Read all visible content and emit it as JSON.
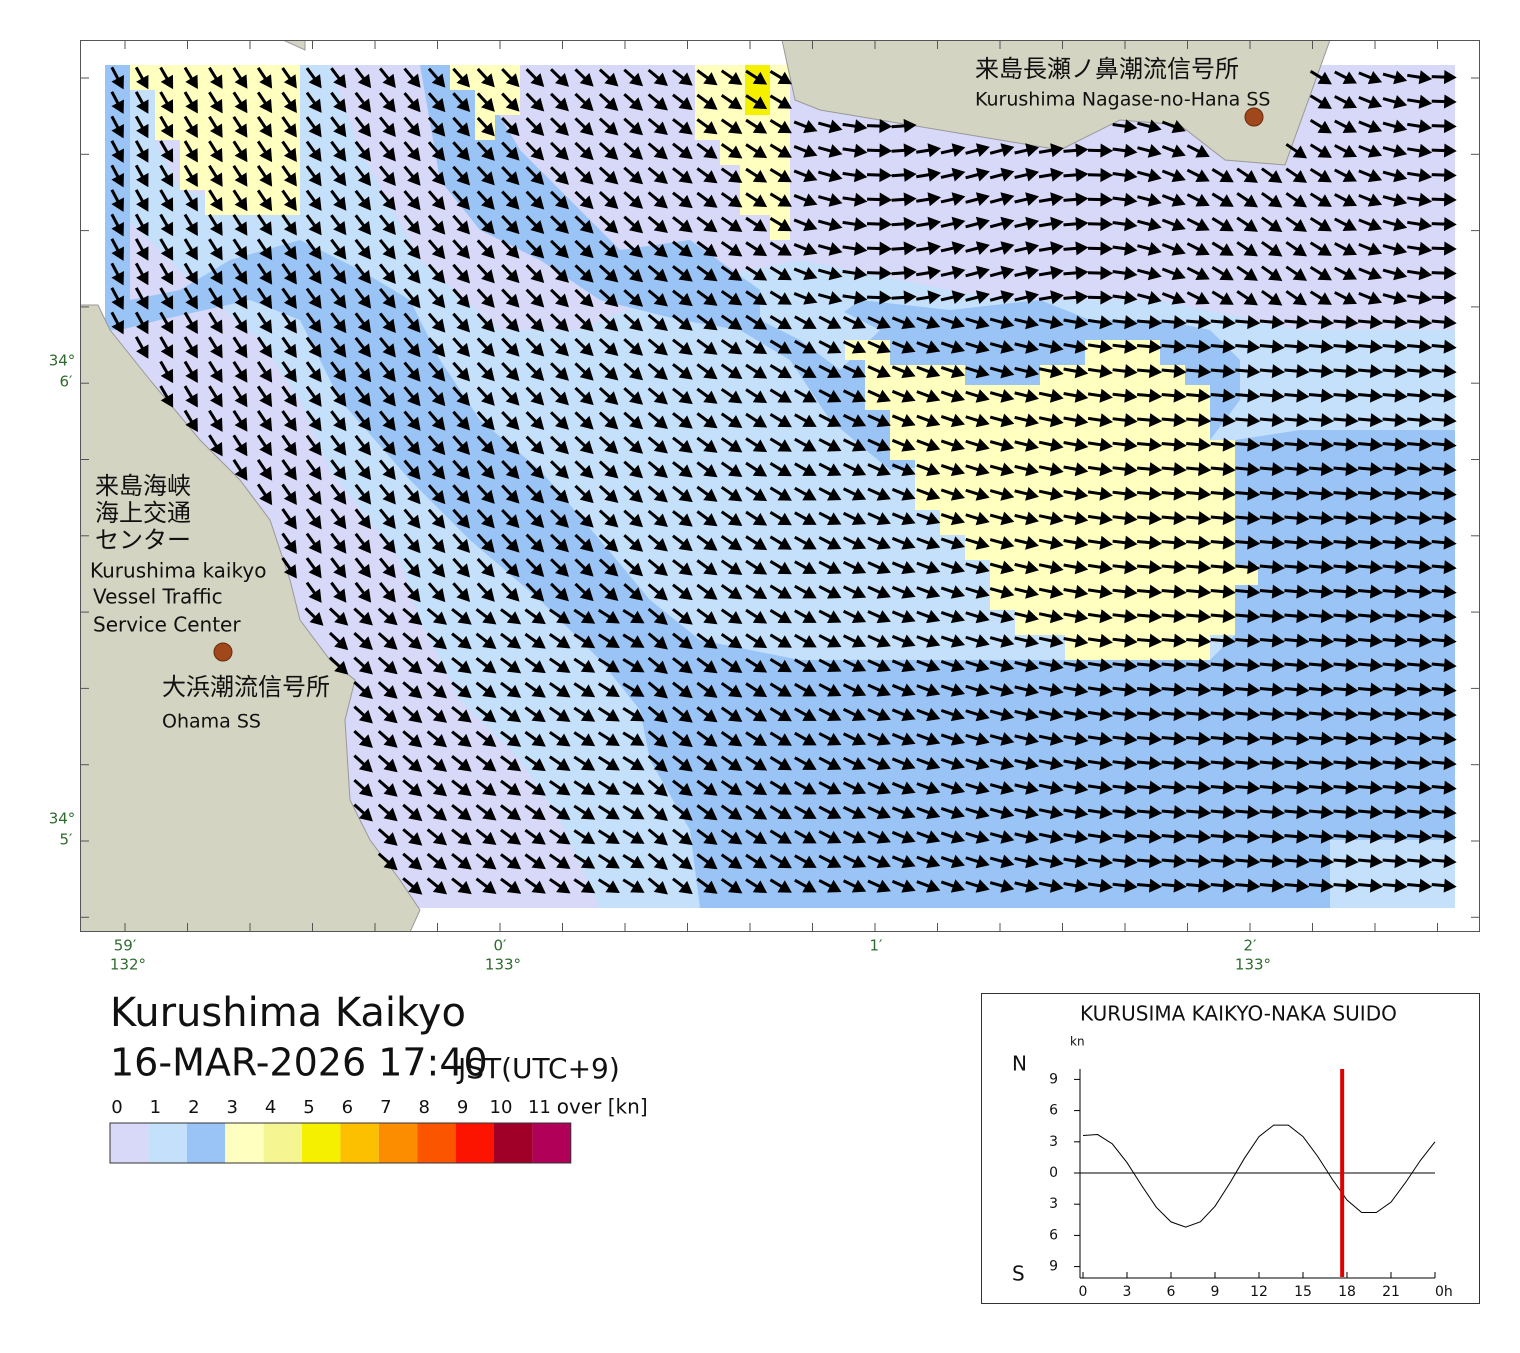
{
  "header": {
    "title": "Kurushima Kaikyo",
    "datetime": "16-MAR-2026 17:40",
    "timezone": "JST(UTC+9)"
  },
  "map": {
    "stations": [
      {
        "name_ja": "来島長瀬ノ鼻潮流信号所",
        "name_en": "Kurushima Nagase-no-Hana SS"
      },
      {
        "name_ja": "大浜潮流信号所",
        "name_en": "Ohama SS"
      }
    ],
    "vts": {
      "name_ja": [
        "来島海峡",
        "海上交通",
        "センター"
      ],
      "name_en": [
        "Kurushima kaikyo",
        "Vessel Traffic",
        "Service Center"
      ]
    },
    "lat_labels": [
      [
        "34°",
        "6′"
      ],
      [
        "34°",
        "5′"
      ]
    ],
    "lon_labels": [
      [
        "59′",
        "132°"
      ],
      [
        "0′",
        "133°"
      ],
      [
        "1′"
      ],
      [
        "2′",
        "133°"
      ]
    ]
  },
  "legend": {
    "labels": [
      "0",
      "1",
      "2",
      "3",
      "4",
      "5",
      "6",
      "7",
      "8",
      "9",
      "10",
      "11"
    ],
    "unit": "over [kn]",
    "colors": [
      "#d8d8f8",
      "#c4e0fb",
      "#99c4f5",
      "#ffffc0",
      "#f5f591",
      "#f5f000",
      "#fcc000",
      "#fc8c00",
      "#fc5500",
      "#fc1400",
      "#a00028",
      "#b00058"
    ]
  },
  "chart_data": {
    "type": "line",
    "title": "KURUSIMA KAIKYO-NAKA SUIDO",
    "y_unit": "kn",
    "north_label": "N",
    "south_label": "S",
    "x": [
      0,
      1,
      2,
      3,
      4,
      5,
      6,
      7,
      8,
      9,
      10,
      11,
      12,
      13,
      14,
      15,
      16,
      17,
      18,
      19,
      20,
      21,
      22,
      23,
      24
    ],
    "values": [
      3.6,
      3.7,
      2.8,
      1.0,
      -1.2,
      -3.3,
      -4.7,
      -5.2,
      -4.7,
      -3.2,
      -1.0,
      1.4,
      3.5,
      4.6,
      4.6,
      3.5,
      1.6,
      -0.6,
      -2.6,
      -3.8,
      -3.8,
      -2.8,
      -0.9,
      1.2,
      3.0
    ],
    "color": "#000000",
    "xlim": [
      0,
      24
    ],
    "xticks": [
      0,
      3,
      6,
      9,
      12,
      15,
      18,
      21,
      {
        "value": 24,
        "label": "0h"
      }
    ],
    "ylim": [
      -10,
      10
    ],
    "yticks": [
      {
        "value": 9,
        "label": "9"
      },
      {
        "value": 6,
        "label": "6"
      },
      {
        "value": 3,
        "label": "3"
      },
      0,
      {
        "value": -3,
        "label": "3"
      },
      {
        "value": -6,
        "label": "6"
      },
      {
        "value": -9,
        "label": "9"
      }
    ],
    "marker_x": 17.67,
    "marker_color": "#e00000"
  }
}
